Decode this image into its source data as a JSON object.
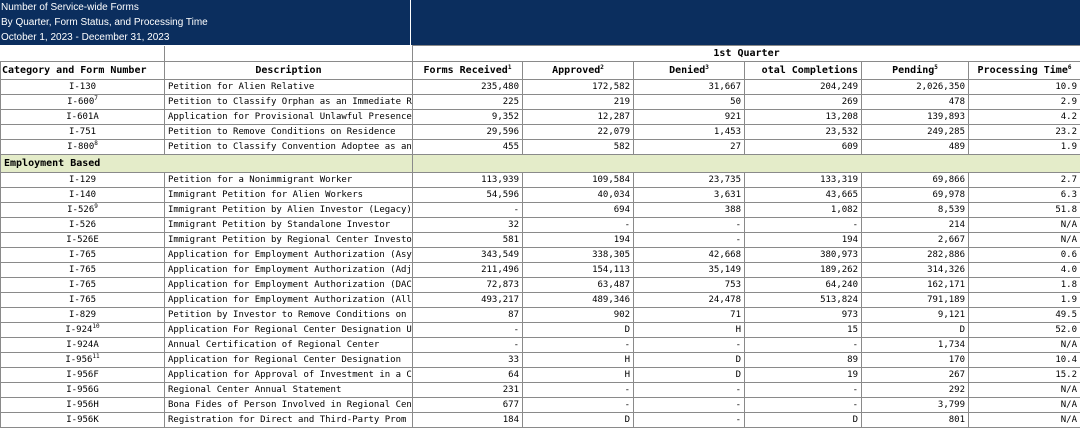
{
  "title": {
    "line1": "Number of Service-wide Forms",
    "line2": "By Quarter, Form Status, and Processing Time",
    "line3": "October 1, 2023 - December 31, 2023"
  },
  "quarter_header": "1st Quarter",
  "columns": {
    "category": "Category and Form Number",
    "description": "Description",
    "received": "Forms Received",
    "received_sup": "1",
    "approved": "Approved",
    "approved_sup": "2",
    "denied": "Denied",
    "denied_sup": "3",
    "completions": "Total Completions",
    "completions_visible": "otal Completions",
    "pending": "Pending",
    "pending_sup": "5",
    "processing": "Processing Time",
    "processing_sup": "6"
  },
  "family_rows": [
    {
      "form": "I-130",
      "sup": "",
      "desc": "Petition for Alien Relative",
      "received": "235,480",
      "approved": "172,582",
      "denied": "31,667",
      "completions": "204,249",
      "pending": "2,026,350",
      "time": "10.9"
    },
    {
      "form": "I-600",
      "sup": "7",
      "desc": "Petition to Classify Orphan as an Immediate R",
      "received": "225",
      "approved": "219",
      "denied": "50",
      "completions": "269",
      "pending": "478",
      "time": "2.9"
    },
    {
      "form": "I-601A",
      "sup": "",
      "desc": "Application for Provisional Unlawful Presence",
      "received": "9,352",
      "approved": "12,287",
      "denied": "921",
      "completions": "13,208",
      "pending": "139,893",
      "time": "4.2"
    },
    {
      "form": "I-751",
      "sup": "",
      "desc": "Petition to Remove Conditions on Residence",
      "received": "29,596",
      "approved": "22,079",
      "denied": "1,453",
      "completions": "23,532",
      "pending": "249,285",
      "time": "23.2"
    },
    {
      "form": "I-800",
      "sup": "8",
      "desc": "Petition to Classify Convention Adoptee as an",
      "received": "455",
      "approved": "582",
      "denied": "27",
      "completions": "609",
      "pending": "489",
      "time": "1.9"
    }
  ],
  "section_employment": "Employment Based",
  "employment_rows": [
    {
      "form": "I-129",
      "sup": "",
      "desc": "Petition for a Nonimmigrant Worker",
      "received": "113,939",
      "approved": "109,584",
      "denied": "23,735",
      "completions": "133,319",
      "pending": "69,866",
      "time": "2.7"
    },
    {
      "form": "I-140",
      "sup": "",
      "desc": "Immigrant Petition for Alien Workers",
      "received": "54,596",
      "approved": "40,034",
      "denied": "3,631",
      "completions": "43,665",
      "pending": "69,978",
      "time": "6.3"
    },
    {
      "form": "I-526",
      "sup": "9",
      "desc": "Immigrant Petition by Alien Investor (Legacy)",
      "received": "-",
      "approved": "694",
      "denied": "388",
      "completions": "1,082",
      "pending": "8,539",
      "time": "51.8"
    },
    {
      "form": "I-526",
      "sup": "",
      "desc": "Immigrant Petition by Standalone Investor",
      "received": "32",
      "approved": "-",
      "denied": "-",
      "completions": "-",
      "pending": "214",
      "time": "N/A"
    },
    {
      "form": "I-526E",
      "sup": "",
      "desc": "Immigrant Petition by Regional Center Investor",
      "received": "581",
      "approved": "194",
      "denied": "-",
      "completions": "194",
      "pending": "2,667",
      "time": "N/A"
    },
    {
      "form": "I-765",
      "sup": "",
      "desc": "Application for Employment Authorization (Asylum",
      "received": "343,549",
      "approved": "338,305",
      "denied": "42,668",
      "completions": "380,973",
      "pending": "282,886",
      "time": "0.6"
    },
    {
      "form": "I-765",
      "sup": "",
      "desc": "Application for Employment Authorization (Adj",
      "received": "211,496",
      "approved": "154,113",
      "denied": "35,149",
      "completions": "189,262",
      "pending": "314,326",
      "time": "4.0"
    },
    {
      "form": "I-765",
      "sup": "",
      "desc": "Application for Employment Authorization (DACA",
      "received": "72,873",
      "approved": "63,487",
      "denied": "753",
      "completions": "64,240",
      "pending": "162,171",
      "time": "1.8"
    },
    {
      "form": "I-765",
      "sup": "",
      "desc": "Application for Employment Authorization (All",
      "received": "493,217",
      "approved": "489,346",
      "denied": "24,478",
      "completions": "513,824",
      "pending": "791,189",
      "time": "1.9"
    },
    {
      "form": "I-829",
      "sup": "",
      "desc": "Petition by Investor to Remove Conditions on",
      "received": "87",
      "approved": "902",
      "denied": "71",
      "completions": "973",
      "pending": "9,121",
      "time": "49.5"
    },
    {
      "form": "I-924",
      "sup": "10",
      "desc": "Application For Regional Center Designation U",
      "received": "-",
      "approved": "D",
      "denied": "H",
      "completions": "15",
      "pending": "D",
      "time": "52.0"
    },
    {
      "form": "I-924A",
      "sup": "",
      "desc": "Annual Certification of Regional Center",
      "received": "-",
      "approved": "-",
      "denied": "-",
      "completions": "-",
      "pending": "1,734",
      "time": "N/A"
    },
    {
      "form": "I-956",
      "sup": "11",
      "desc": "Application for Regional Center Designation",
      "received": "33",
      "approved": "H",
      "denied": "D",
      "completions": "89",
      "pending": "170",
      "time": "10.4"
    },
    {
      "form": "I-956F",
      "sup": "",
      "desc": "Application for Approval of Investment in a C",
      "received": "64",
      "approved": "H",
      "denied": "D",
      "completions": "19",
      "pending": "267",
      "time": "15.2"
    },
    {
      "form": "I-956G",
      "sup": "",
      "desc": "Regional Center Annual Statement",
      "received": "231",
      "approved": "-",
      "denied": "-",
      "completions": "-",
      "pending": "292",
      "time": "N/A"
    },
    {
      "form": "I-956H",
      "sup": "",
      "desc": "Bona Fides of Person Involved in Regional Cen",
      "received": "677",
      "approved": "-",
      "denied": "-",
      "completions": "-",
      "pending": "3,799",
      "time": "N/A"
    },
    {
      "form": "I-956K",
      "sup": "",
      "desc": "Registration for Direct and Third-Party Prom",
      "received": "184",
      "approved": "D",
      "denied": "-",
      "completions": "D",
      "pending": "801",
      "time": "N/A"
    }
  ],
  "colors": {
    "title_bg": "#0b2e5e",
    "section_bg": "#e4ecc9",
    "grid": "#8a8a8a"
  }
}
